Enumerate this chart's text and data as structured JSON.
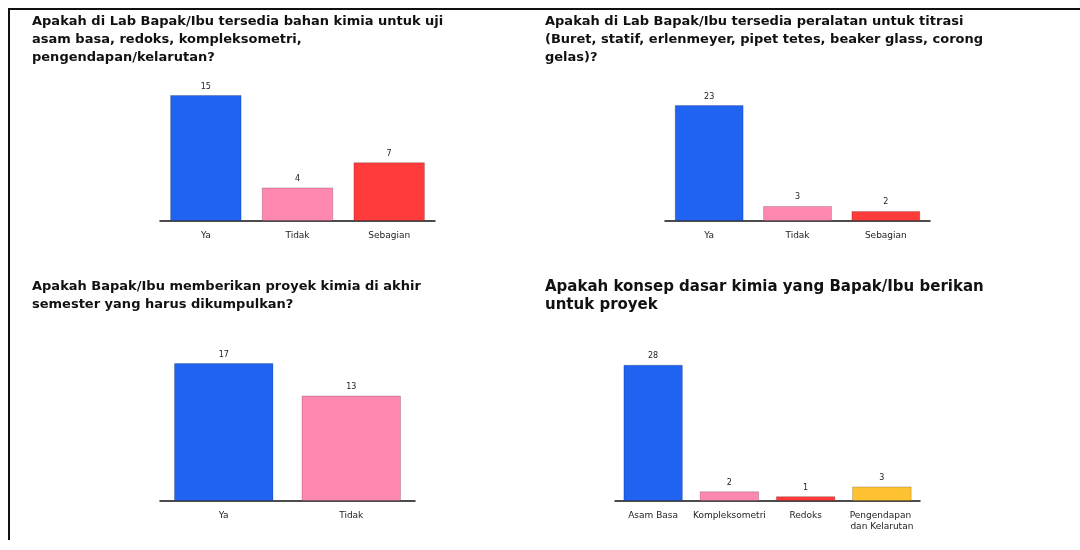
{
  "chart_data": [
    {
      "type": "bar",
      "title": "Apakah di Lab Bapak/Ibu tersedia bahan kimia untuk uji asam basa, redoks, kompleksometri, pengendapan/kelarutan?",
      "categories": [
        "Ya",
        "Tidak",
        "Sebagian"
      ],
      "values": [
        15,
        4,
        7
      ],
      "colors": [
        "#1f63f0",
        "#ff88b0",
        "#ff3b3b"
      ],
      "data_labels": true,
      "grid": false
    },
    {
      "type": "bar",
      "title": "Apakah di Lab Bapak/Ibu tersedia peralatan untuk titrasi (Buret, statif, erlenmeyer, pipet tetes, beaker glass, corong gelas)?",
      "categories": [
        "Ya",
        "Tidak",
        "Sebagian"
      ],
      "values": [
        23,
        3,
        2
      ],
      "colors": [
        "#1f63f0",
        "#ff88b0",
        "#ff3b3b"
      ],
      "data_labels": true,
      "grid": false
    },
    {
      "type": "bar",
      "title": "Apakah Bapak/Ibu memberikan proyek kimia di akhir semester yang harus dikumpulkan?",
      "categories": [
        "Ya",
        "Tidak"
      ],
      "values": [
        17,
        13
      ],
      "colors": [
        "#1f63f0",
        "#ff88b0"
      ],
      "data_labels": true,
      "grid": false
    },
    {
      "type": "bar",
      "title": "Apakah konsep dasar kimia yang Bapak/Ibu berikan untuk proyek",
      "categories": [
        "Asam Basa",
        "Kompleksometri",
        "Redoks",
        "Pengendapan dan Kelarutan"
      ],
      "values": [
        28,
        2,
        1,
        3
      ],
      "colors": [
        "#1f63f0",
        "#ff88b0",
        "#ff3b3b",
        "#ffc233"
      ],
      "data_labels": true,
      "grid": false
    }
  ]
}
